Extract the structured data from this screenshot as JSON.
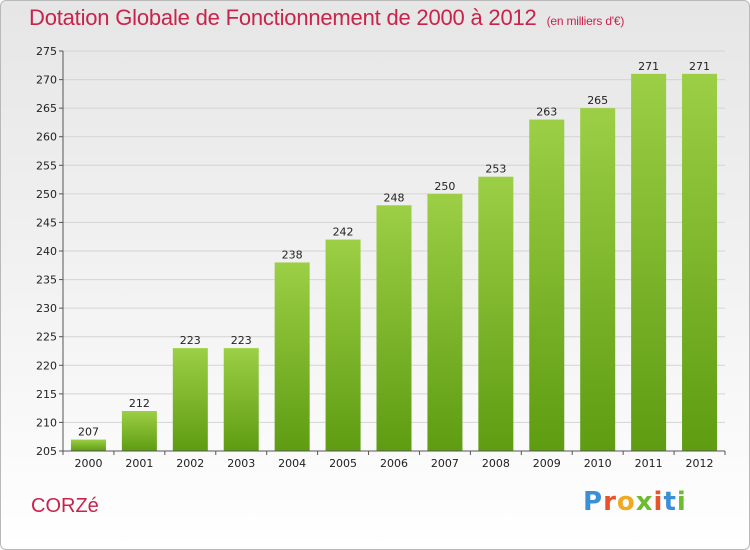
{
  "title": "Dotation Globale de Fonctionnement de 2000 à 2012",
  "subtitle": "(en milliers d'€)",
  "town": "CORZé",
  "logo": "Proxiti",
  "colors": {
    "title": "#c8234b",
    "bar_light": "#9ccf45",
    "bar_dark": "#5e9c12",
    "logo": [
      "#3a8fd6",
      "#e8532b",
      "#f2a922",
      "#6dbb2f",
      "#e8532b",
      "#3a8fd6",
      "#6dbb2f"
    ]
  },
  "chart_data": {
    "type": "bar",
    "title": "Dotation Globale de Fonctionnement de 2000 à 2012",
    "subtitle": "(en milliers d'€)",
    "categories": [
      "2000",
      "2001",
      "2002",
      "2003",
      "2004",
      "2005",
      "2006",
      "2007",
      "2008",
      "2009",
      "2010",
      "2011",
      "2012"
    ],
    "values": [
      207,
      212,
      223,
      223,
      238,
      242,
      248,
      250,
      253,
      263,
      265,
      271,
      271
    ],
    "ylim": [
      205,
      275
    ],
    "yticks": [
      205,
      210,
      215,
      220,
      225,
      230,
      235,
      240,
      245,
      250,
      255,
      260,
      265,
      270,
      275
    ],
    "grid": true,
    "legend": "none",
    "data_labels": true
  }
}
